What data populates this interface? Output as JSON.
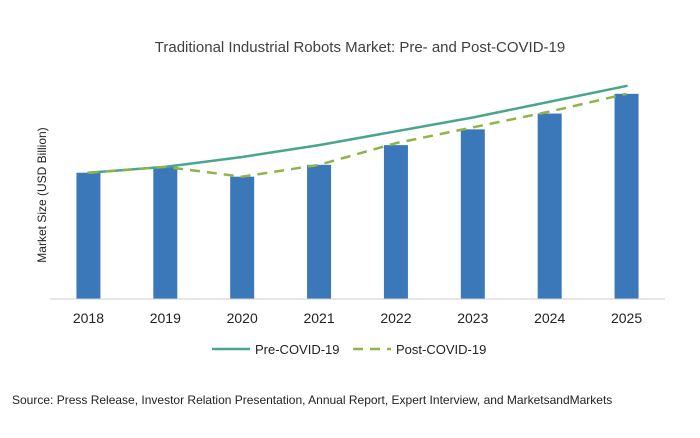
{
  "chart_data": {
    "type": "bar",
    "title": "Traditional Industrial Robots Market: Pre- and Post-COVID-19",
    "xlabel": "",
    "ylabel": "Market Size (USD Billion)",
    "categories": [
      "2018",
      "2019",
      "2020",
      "2021",
      "2022",
      "2023",
      "2024",
      "2025"
    ],
    "bar_series": {
      "name": "",
      "values": [
        64,
        67,
        62,
        68,
        78,
        86,
        94,
        104
      ],
      "color": "#3a78b9"
    },
    "line_series": [
      {
        "name": "Pre-COVID-19",
        "values": [
          64,
          67,
          72,
          78,
          85,
          92,
          100,
          108
        ],
        "color": "#4aa58c",
        "style": "solid"
      },
      {
        "name": "Post-COVID-19",
        "values": [
          64,
          67,
          62,
          68,
          79,
          87,
          95,
          104
        ],
        "color": "#8fb44a",
        "style": "dashed"
      }
    ],
    "ylim": [
      0,
      110
    ],
    "yaxis_ticks_visible": false,
    "grid": false,
    "legend_position": "bottom"
  },
  "source": "Source: Press Release, Investor Relation Presentation, Annual Report, Expert Interview, and MarketsandMarkets"
}
